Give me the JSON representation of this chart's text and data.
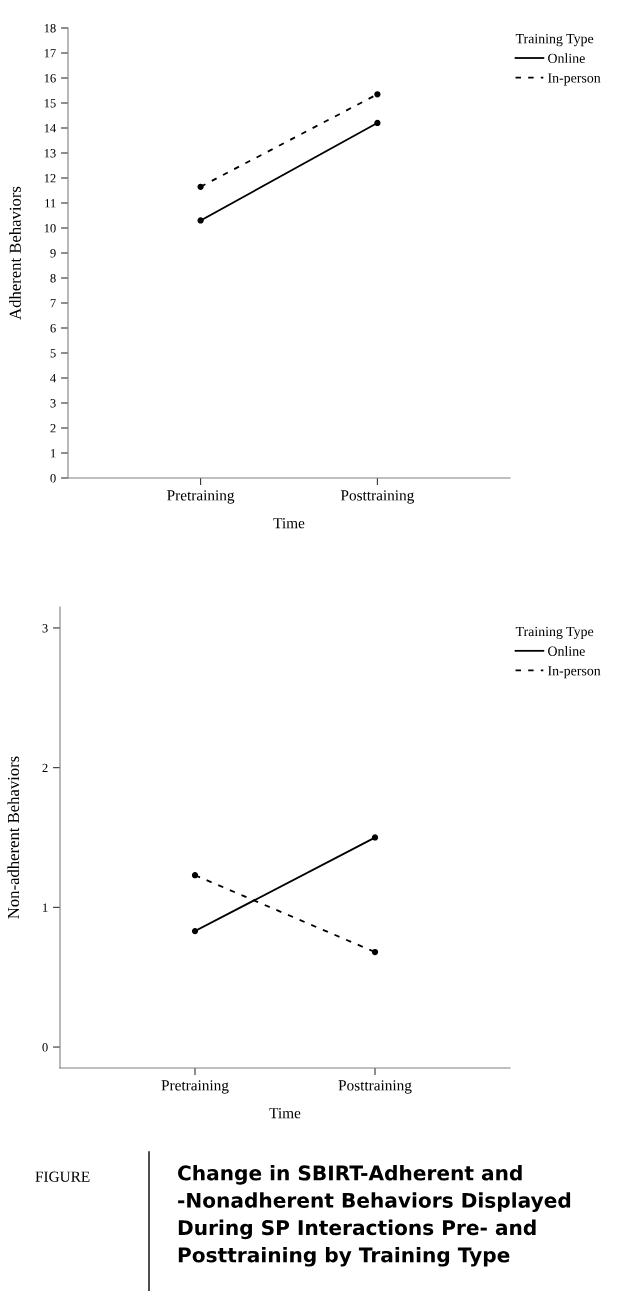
{
  "chart_data": [
    {
      "type": "line",
      "categories": [
        "Pretraining",
        "Posttraining"
      ],
      "xlabel": "Time",
      "ylabel": "Adherent Behaviors",
      "legend_title": "Training Type",
      "legend": "top right",
      "marker": "circle",
      "grid": false,
      "ylim": [
        0,
        18
      ],
      "yticks": [
        0,
        1,
        2,
        3,
        4,
        5,
        6,
        7,
        8,
        9,
        10,
        11,
        12,
        13,
        14,
        15,
        16,
        17,
        18
      ],
      "series": [
        {
          "name": "Online",
          "color": "#000000",
          "line_style": "solid",
          "values": [
            10.3,
            14.2
          ]
        },
        {
          "name": "In-person",
          "color": "#000000",
          "line_style": "dashed",
          "values": [
            11.65,
            15.35
          ]
        }
      ]
    },
    {
      "type": "line",
      "categories": [
        "Pretraining",
        "Posttraining"
      ],
      "xlabel": "Time",
      "ylabel": "Non-adherent Behaviors",
      "legend_title": "Training Type",
      "legend": "top right",
      "marker": "circle",
      "grid": false,
      "ylim": [
        -0.15,
        3.15
      ],
      "yticks": [
        0,
        1,
        2,
        3
      ],
      "series": [
        {
          "name": "Online",
          "color": "#000000",
          "line_style": "solid",
          "values": [
            0.83,
            1.5
          ]
        },
        {
          "name": "In-person",
          "color": "#000000",
          "line_style": "dashed",
          "values": [
            1.23,
            0.68
          ]
        }
      ],
      "annotations": [
        "FIGURE",
        "Change in SBIRT-Adherent and -Nonadherent Behaviors Displayed During SP Interactions Pre- and Posttraining by Training Type"
      ]
    }
  ]
}
